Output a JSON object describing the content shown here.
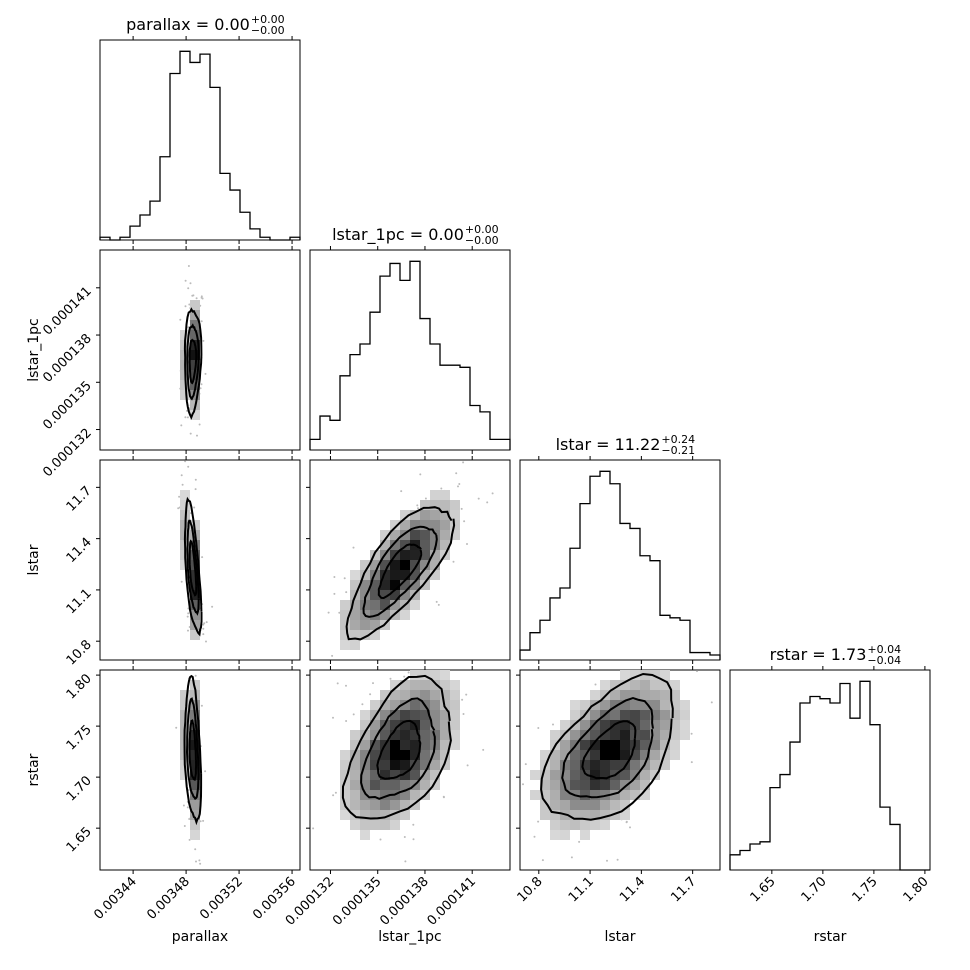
{
  "chart_data": {
    "type": "corner",
    "parameters": [
      "parallax",
      "lstar_1pc",
      "lstar",
      "rstar"
    ],
    "titles": [
      {
        "text": "parallax = 0.00",
        "sup": "+0.00",
        "sub": "−0.00"
      },
      {
        "text": "lstar_1pc = 0.00",
        "sup": "+0.00",
        "sub": "−0.00"
      },
      {
        "text": "lstar = 11.22",
        "sup": "+0.24",
        "sub": "−0.21"
      },
      {
        "text": "rstar = 1.73",
        "sup": "+0.04",
        "sub": "−0.04"
      }
    ],
    "ranges": [
      [
        0.003415,
        0.003566
      ],
      [
        0.0001307,
        0.0001434
      ],
      [
        10.69,
        11.86
      ],
      [
        1.609,
        1.805
      ]
    ],
    "ticks": [
      [
        "0.00344",
        "0.00348",
        "0.00352",
        "0.00356"
      ],
      [
        "0.000132",
        "0.000135",
        "0.000138",
        "0.000141"
      ],
      [
        "10.8",
        "11.1",
        "11.4",
        "11.7"
      ],
      [
        "1.65",
        "1.70",
        "1.75",
        "1.80"
      ]
    ],
    "tick_values": [
      [
        0.00344,
        0.00348,
        0.00352,
        0.00356
      ],
      [
        0.000132,
        0.000135,
        0.000138,
        0.000141
      ],
      [
        10.8,
        11.1,
        11.4,
        11.7
      ],
      [
        1.65,
        1.7,
        1.75,
        1.8
      ]
    ],
    "histograms": [
      [
        1,
        0,
        1,
        5,
        9,
        14,
        30,
        60,
        68,
        64,
        67,
        55,
        24,
        18,
        10,
        4,
        1,
        0,
        0,
        1
      ],
      [
        5,
        16,
        14,
        35,
        45,
        50,
        65,
        82,
        88,
        80,
        89,
        62,
        50,
        40,
        40,
        39,
        21,
        18,
        5,
        5
      ],
      [
        4,
        11,
        16,
        25,
        29,
        45,
        63,
        74,
        76,
        71,
        55,
        53,
        42,
        40,
        18,
        17,
        16,
        3,
        3,
        2
      ],
      [
        7,
        9,
        12,
        13,
        38,
        44,
        59,
        77,
        80,
        79,
        77,
        86,
        70,
        87,
        67,
        29,
        21,
        0,
        0,
        0
      ]
    ]
  }
}
